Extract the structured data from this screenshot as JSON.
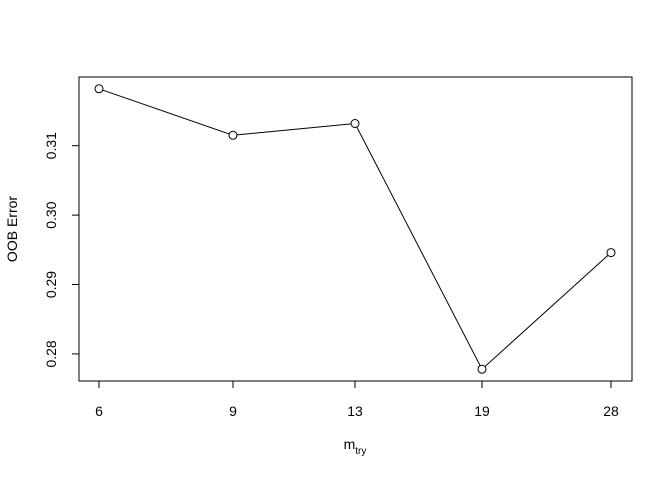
{
  "chart_data": {
    "type": "line",
    "x_categories": [
      "6",
      "9",
      "13",
      "19",
      "28"
    ],
    "values": [
      0.3182,
      0.3115,
      0.3132,
      0.2778,
      0.2946
    ],
    "ylim": [
      0.2761,
      0.3199
    ],
    "yticks": [
      0.28,
      0.29,
      0.3,
      0.31
    ],
    "ytick_labels": [
      "0.28",
      "0.29",
      "0.30",
      "0.31"
    ],
    "xlabel_main": "m",
    "xlabel_sub": "try",
    "ylabel": "OOB Error",
    "grid": false,
    "markers": "open-circle",
    "line_color": "#000000"
  }
}
